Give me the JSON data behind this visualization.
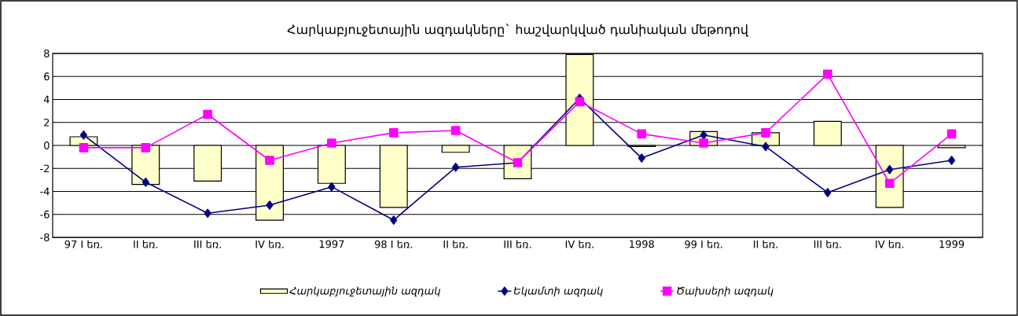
{
  "chart_data": {
    "type": "bar",
    "title": "Հարկաբյուջետային ազդակները` հաշվարկված դանիական մեթոդով",
    "categories": [
      "97 I եռ.",
      "II եռ.",
      "III եռ.",
      "IV եռ.",
      "1997",
      "98 I եռ.",
      "II եռ.",
      "III եռ.",
      "IV եռ.",
      "1998",
      "99 I եռ.",
      "II եռ.",
      "III եռ.",
      "IV եռ.",
      "1999"
    ],
    "series": [
      {
        "name": "Հարկաբյուջետային ազդակ",
        "color": "#ffffcc",
        "values": [
          0.75,
          -3.4,
          -3.1,
          -6.5,
          -3.3,
          -5.4,
          -0.6,
          -2.9,
          7.9,
          -0.1,
          1.2,
          1.1,
          2.1,
          -5.4,
          -0.2
        ]
      },
      {
        "name": "Եկամտի ազդակ",
        "type": "line",
        "color": "#000080",
        "marker": "diamond",
        "values": [
          0.9,
          -3.2,
          -5.9,
          -5.2,
          -3.6,
          -6.5,
          -1.9,
          -1.5,
          4.1,
          -1.1,
          0.9,
          -0.1,
          -4.1,
          -2.1,
          -1.3
        ]
      },
      {
        "name": "Ծախսերի ազդակ",
        "type": "line",
        "color": "#ff00ff",
        "marker": "square",
        "values": [
          -0.2,
          -0.2,
          2.7,
          -1.3,
          0.2,
          1.1,
          1.3,
          -1.5,
          3.8,
          1.0,
          0.2,
          1.1,
          6.2,
          -3.3,
          1.0
        ]
      }
    ],
    "ylim": [
      -8,
      8
    ],
    "yticks": [
      -8,
      -6,
      -4,
      -2,
      0,
      2,
      4,
      6,
      8
    ],
    "grid": "y",
    "legend": "bottom"
  }
}
